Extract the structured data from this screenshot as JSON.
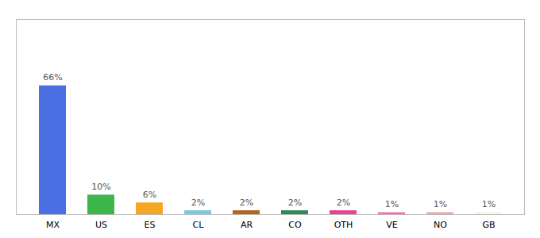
{
  "chart_data": {
    "type": "bar",
    "categories": [
      "MX",
      "US",
      "ES",
      "CL",
      "AR",
      "CO",
      "OTH",
      "VE",
      "NO",
      "GB"
    ],
    "values": [
      66,
      10,
      6,
      2,
      2,
      2,
      2,
      1,
      1,
      1
    ],
    "value_labels": [
      "66%",
      "10%",
      "6%",
      "2%",
      "2%",
      "2%",
      "2%",
      "1%",
      "1%",
      "1%"
    ],
    "colors": [
      "#4A6FE3",
      "#3CB54A",
      "#F5A623",
      "#7EC8E3",
      "#B5651D",
      "#2E8B57",
      "#E84393",
      "#FF69B4",
      "#F4A0A0",
      "#F5F5DC"
    ],
    "ylim": [
      0,
      100
    ],
    "data_labels": true,
    "tick_labels": "x"
  }
}
